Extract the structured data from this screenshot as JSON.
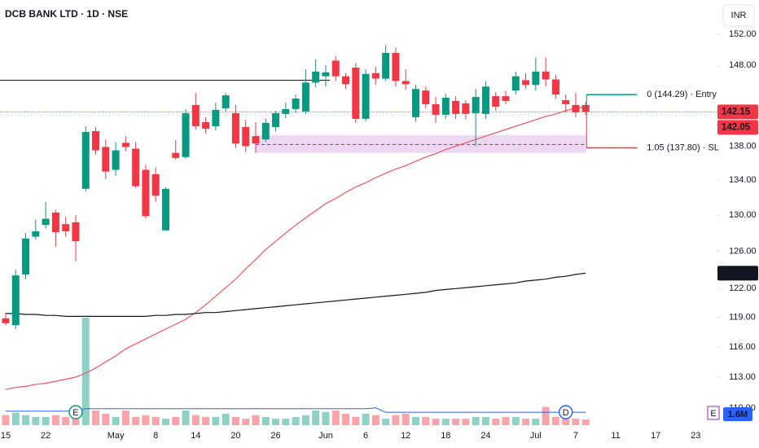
{
  "chart_data": {
    "type": "candlestick",
    "title": "DCB BANK LTD · 1D · NSE",
    "currency": "INR",
    "categories": [
      "15",
      null,
      null,
      null,
      "22",
      null,
      null,
      null,
      null,
      null,
      null,
      "May",
      null,
      null,
      null,
      "8",
      null,
      null,
      null,
      "14",
      null,
      null,
      null,
      "20",
      null,
      null,
      null,
      "26",
      null,
      null,
      null,
      null,
      "Jun",
      null,
      null,
      null,
      "6",
      null,
      null,
      null,
      "12",
      null,
      null,
      null,
      "18",
      null,
      null,
      null,
      "24",
      null,
      null,
      null,
      null,
      "Jul",
      null,
      null,
      null,
      "7",
      null,
      null,
      null,
      "11",
      null,
      null,
      null,
      "17",
      null,
      null,
      null,
      "23",
      null,
      null
    ],
    "open": [
      118.9,
      118.2,
      123.5,
      127.6,
      128.9,
      130.3,
      129.0,
      129.2,
      133.0,
      139.8,
      137.9,
      135.2,
      138.4,
      137.7,
      135.2,
      134.7,
      128.3,
      137.2,
      136.7,
      143.0,
      140.9,
      140.4,
      142.6,
      142.0,
      140.3,
      139.2,
      138.8,
      140.3,
      141.9,
      142.5,
      142.2,
      145.8,
      146.6,
      148.6,
      146.6,
      147.7,
      141.3,
      147.0,
      146.3,
      149.6,
      146.0,
      141.5,
      144.8,
      143.1,
      141.8,
      143.5,
      143.2,
      142.0,
      141.9,
      144.1,
      144.1,
      144.8,
      146.1,
      145.5,
      147.2,
      146.2,
      143.6,
      143.0,
      143.0,
      null,
      null,
      null,
      null,
      null,
      null,
      null,
      null,
      null,
      null,
      null,
      null,
      null
    ],
    "high": [
      119.5,
      124.0,
      128.0,
      129.5,
      131.5,
      130.6,
      129.8,
      130.0,
      140.4,
      140.3,
      138.8,
      138.5,
      139.2,
      138.5,
      135.8,
      135.5,
      133.2,
      138.7,
      142.5,
      144.5,
      141.5,
      143.3,
      144.5,
      143.0,
      141.2,
      140.9,
      141.3,
      142.3,
      143.3,
      144.3,
      147.5,
      148.8,
      148.0,
      149.2,
      147.0,
      148.3,
      147.5,
      147.8,
      150.6,
      150.3,
      147.5,
      145.5,
      145.3,
      144.0,
      144.4,
      144.1,
      143.6,
      145.0,
      146.0,
      144.6,
      144.8,
      147.2,
      147.0,
      149.0,
      149.0,
      146.8,
      144.3,
      144.5,
      143.4,
      null,
      null,
      null,
      null,
      null,
      null,
      null,
      null,
      null,
      null,
      null,
      null,
      null
    ],
    "low": [
      118.2,
      117.8,
      123.0,
      127.3,
      128.5,
      126.5,
      127.6,
      124.9,
      132.7,
      137.0,
      134.1,
      134.5,
      137.4,
      133.1,
      129.6,
      131.5,
      128.3,
      136.4,
      136.5,
      140.0,
      139.5,
      139.9,
      142.2,
      137.8,
      137.3,
      137.2,
      138.5,
      139.8,
      141.4,
      142.0,
      141.9,
      145.2,
      145.3,
      146.0,
      145.0,
      140.8,
      141.0,
      145.5,
      146.0,
      145.3,
      144.9,
      141.0,
      142.6,
      140.8,
      141.3,
      141.3,
      141.2,
      138.0,
      141.3,
      142.3,
      143.1,
      144.3,
      145.0,
      144.8,
      145.3,
      143.8,
      142.2,
      141.5,
      141.8,
      null,
      null,
      null,
      null,
      null,
      null,
      null,
      null,
      null,
      null,
      null,
      null,
      null
    ],
    "close": [
      118.4,
      123.4,
      127.4,
      128.2,
      129.6,
      128.1,
      128.2,
      127.1,
      139.7,
      137.5,
      135.0,
      137.5,
      137.9,
      133.3,
      129.9,
      132.2,
      133.0,
      136.6,
      142.0,
      140.4,
      140.1,
      142.4,
      144.2,
      138.3,
      138.0,
      138.3,
      140.8,
      142.0,
      142.5,
      143.8,
      145.8,
      147.2,
      147.1,
      146.6,
      145.6,
      141.3,
      146.9,
      146.3,
      149.6,
      146.0,
      145.6,
      145.0,
      143.1,
      141.8,
      143.9,
      141.9,
      141.9,
      144.0,
      145.3,
      142.8,
      143.5,
      146.6,
      145.5,
      147.2,
      146.2,
      144.3,
      143.1,
      142.1,
      142.15,
      null,
      null,
      null,
      null,
      null,
      null,
      null,
      null,
      null,
      null,
      null,
      null,
      null
    ],
    "up_color": "#089981",
    "down_color": "#f23645",
    "ylim": [
      108.4,
      156.6
    ],
    "log_scale": true,
    "grid": false,
    "yticks": [
      {
        "value": 152,
        "label": "152.00"
      },
      {
        "value": 148,
        "label": "148.00"
      },
      {
        "value": 138,
        "label": "138.00"
      },
      {
        "value": 134,
        "label": "134.00"
      },
      {
        "value": 130,
        "label": "130.00"
      },
      {
        "value": 126,
        "label": "126.00"
      },
      {
        "value": 122,
        "label": "122.00"
      },
      {
        "value": 119,
        "label": "119.00"
      },
      {
        "value": 116,
        "label": "116.00"
      },
      {
        "value": 113,
        "label": "113.00"
      },
      {
        "value": 110,
        "label": "110.00"
      }
    ],
    "extra_price_label": 142.05,
    "moving_averages": [
      {
        "color": "#f7525f",
        "values": [
          111.8,
          112.0,
          112.1,
          112.3,
          112.4,
          112.6,
          112.8,
          113.0,
          113.4,
          113.9,
          114.5,
          115.1,
          115.8,
          116.3,
          116.8,
          117.3,
          117.8,
          118.3,
          118.8,
          119.5,
          120.3,
          121.2,
          122.1,
          123.0,
          124.1,
          125.1,
          126.2,
          127.1,
          128.0,
          128.9,
          129.7,
          130.5,
          131.3,
          131.9,
          132.6,
          133.2,
          133.7,
          134.3,
          134.8,
          135.3,
          135.7,
          136.2,
          136.7,
          137.1,
          137.6,
          138.0,
          138.4,
          138.8,
          139.2,
          139.6,
          140.0,
          140.4,
          140.8,
          141.2,
          141.6,
          141.9,
          142.3,
          142.6,
          142.8,
          null,
          null,
          null,
          null,
          null,
          null,
          null,
          null,
          null,
          null,
          null,
          null,
          null
        ]
      },
      {
        "color": "#131722",
        "values": [
          119.4,
          119.4,
          119.3,
          119.3,
          119.2,
          119.2,
          119.1,
          119.1,
          119.1,
          119.1,
          119.1,
          119.1,
          119.1,
          119.1,
          119.1,
          119.2,
          119.2,
          119.3,
          119.3,
          119.4,
          119.5,
          119.5,
          119.6,
          119.7,
          119.8,
          119.9,
          120.0,
          120.1,
          120.2,
          120.3,
          120.4,
          120.5,
          120.6,
          120.7,
          120.8,
          120.9,
          121.0,
          121.1,
          121.2,
          121.3,
          121.4,
          121.5,
          121.6,
          121.8,
          121.9,
          122.0,
          122.1,
          122.2,
          122.3,
          122.4,
          122.5,
          122.6,
          122.8,
          122.9,
          123.0,
          123.2,
          123.3,
          123.5,
          123.64,
          null,
          null,
          null,
          null,
          null,
          null,
          null,
          null,
          null,
          null,
          null,
          null,
          null
        ]
      }
    ],
    "volume": {
      "values": [
        2800000,
        3500000,
        2800000,
        2300000,
        2300000,
        2800000,
        2300000,
        1800000,
        29900000,
        4100000,
        3200000,
        2300000,
        4100000,
        2300000,
        2800000,
        2300000,
        1800000,
        2300000,
        4100000,
        2800000,
        2300000,
        2300000,
        3200000,
        2300000,
        1800000,
        2800000,
        2300000,
        1800000,
        1800000,
        2300000,
        2800000,
        4100000,
        3700000,
        4100000,
        3200000,
        2300000,
        3200000,
        2800000,
        1800000,
        2800000,
        3200000,
        2300000,
        2300000,
        1800000,
        1800000,
        1800000,
        1800000,
        2300000,
        2300000,
        1800000,
        2300000,
        2300000,
        1800000,
        1800000,
        5100000,
        2300000,
        3700000,
        1800000,
        1600000,
        null,
        null,
        null,
        null,
        null,
        null,
        null,
        null,
        null,
        null,
        null,
        null,
        null
      ],
      "last_label": "1.6M",
      "ma_color": "#2962ff",
      "ma": [
        3900000,
        3900000,
        3900000,
        3900000,
        3900000,
        3900000,
        3900000,
        3900000,
        4600000,
        4600000,
        4600000,
        4600000,
        4600000,
        4600000,
        4600000,
        4600000,
        4600000,
        4600000,
        4600000,
        4600000,
        4600000,
        4600000,
        4600000,
        4600000,
        4600000,
        4600000,
        4600000,
        4600000,
        4600000,
        4600000,
        4600000,
        4600000,
        4600000,
        4600000,
        4600000,
        4600000,
        4600000,
        4800000,
        3600000,
        3600000,
        3600000,
        3600000,
        3600000,
        3600000,
        3600000,
        3600000,
        3600000,
        3600000,
        3600000,
        3600000,
        3600000,
        3600000,
        3600000,
        3600000,
        3600000,
        3600000,
        3600000,
        3600000,
        3600000,
        null,
        null,
        null,
        null,
        null,
        null,
        null,
        null,
        null,
        null,
        null,
        null,
        null
      ]
    },
    "events": [
      null,
      null,
      null,
      null,
      null,
      null,
      null,
      "E",
      null,
      null,
      null,
      null,
      null,
      null,
      null,
      null,
      null,
      null,
      null,
      null,
      null,
      null,
      null,
      null,
      null,
      null,
      null,
      null,
      null,
      null,
      null,
      null,
      null,
      null,
      null,
      null,
      null,
      null,
      null,
      null,
      null,
      null,
      null,
      null,
      null,
      null,
      null,
      null,
      null,
      null,
      null,
      null,
      null,
      null,
      null,
      null,
      "D",
      null,
      null,
      null,
      null,
      null,
      null,
      null,
      null,
      null,
      null,
      null,
      null,
      null,
      null,
      null
    ],
    "upcoming_event": "E",
    "hline": {
      "value": 146.1,
      "color": "#131722"
    },
    "zone": {
      "top": 139.3,
      "bottom": 137.2,
      "mid": 138.2,
      "color": "#9c27b0"
    },
    "position": {
      "entry": 144.29,
      "entry_label": "0 (144.29) · Entry",
      "stop": 137.8,
      "stop_label": "1.05 (137.80) · SL"
    }
  }
}
